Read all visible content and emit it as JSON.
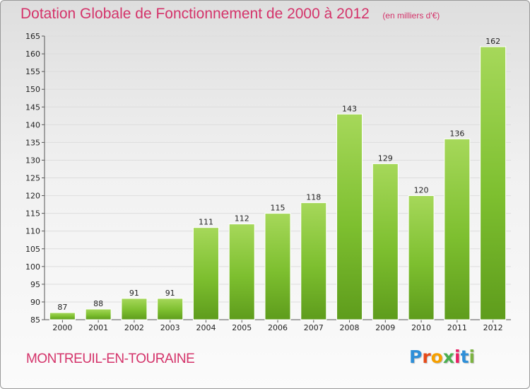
{
  "chart_data": {
    "type": "bar",
    "title": "Dotation Globale de Fonctionnement de 2000 à 2012",
    "unit": "(en milliers d'€)",
    "categories": [
      "2000",
      "2001",
      "2002",
      "2003",
      "2004",
      "2005",
      "2006",
      "2007",
      "2008",
      "2009",
      "2010",
      "2011",
      "2012"
    ],
    "values": [
      87,
      88,
      91,
      91,
      111,
      112,
      115,
      118,
      143,
      129,
      120,
      136,
      162
    ],
    "xlabel": "",
    "ylabel": "",
    "ylim": [
      85,
      165
    ],
    "yticks": [
      85,
      90,
      95,
      100,
      105,
      110,
      115,
      120,
      125,
      130,
      135,
      140,
      145,
      150,
      155,
      160,
      165
    ],
    "grid": true,
    "bar_color": "#7dbf2f",
    "bar_color_light": "#a6d85a",
    "bar_color_dark": "#5e9c1c",
    "data_labels": true,
    "legend": "none"
  },
  "commune": "MONTREUIL-EN-TOURAINE",
  "logo": {
    "text": "Proxiti",
    "letter_colors": [
      "#2f8fd8",
      "#e64a19",
      "#f6a000",
      "#4caf50",
      "#e91e63",
      "#2f8fd8",
      "#7cb342"
    ]
  },
  "colors": {
    "accent": "#d4336a",
    "grid": "#dddddd",
    "axis": "#555555"
  }
}
